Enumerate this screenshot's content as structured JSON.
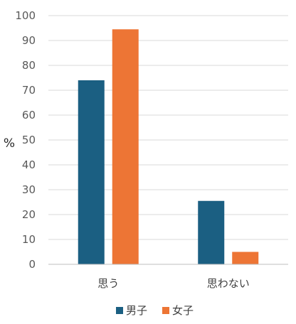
{
  "chart_data": {
    "type": "bar",
    "categories": [
      "思う",
      "思わない"
    ],
    "series": [
      {
        "name": "男子",
        "values": [
          74,
          25.5
        ],
        "color": "#1B5F82"
      },
      {
        "name": "女子",
        "values": [
          94.5,
          5
        ],
        "color": "#ED7535"
      }
    ],
    "ylabel": "%",
    "xlabel": "",
    "ylim": [
      0,
      100
    ],
    "yticks": [
      0,
      10,
      20,
      30,
      40,
      50,
      60,
      70,
      80,
      90,
      100
    ],
    "grid": true,
    "gridline_color": "#D9D9D9",
    "legend": "bottom"
  }
}
